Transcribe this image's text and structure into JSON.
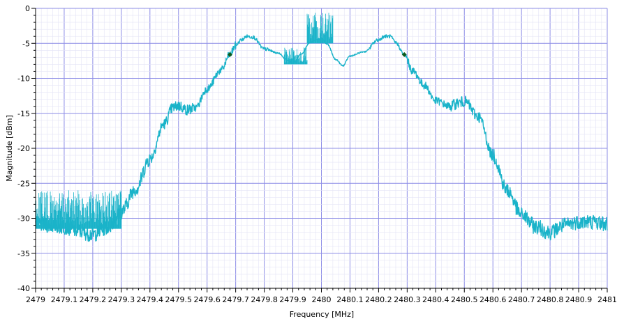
{
  "chart_data": {
    "type": "line",
    "title": "",
    "xlabel": "Frequency [MHz]",
    "ylabel": "Magnitude [dBm]",
    "xlim": [
      2479,
      2481
    ],
    "ylim": [
      -40,
      0
    ],
    "grid": true,
    "x_ticks": [
      2479,
      2479.1,
      2479.2,
      2479.3,
      2479.4,
      2479.5,
      2479.6,
      2479.7,
      2479.8,
      2479.9,
      2480,
      2480.1,
      2480.2,
      2480.3,
      2480.4,
      2480.5,
      2480.6,
      2480.7,
      2480.8,
      2480.9,
      2481
    ],
    "x_tick_labels": [
      "2479",
      "2479.1",
      "2479.2",
      "2479.3",
      "2479.4",
      "2479.5",
      "2479.6",
      "2479.7",
      "2479.8",
      "2479.9",
      "2480",
      "2480.1",
      "2480.2",
      "2480.3",
      "2480.4",
      "2480.5",
      "2480.6",
      "2480.7",
      "2480.8",
      "2480.9",
      "2481"
    ],
    "y_ticks": [
      0,
      -5,
      -10,
      -15,
      -20,
      -25,
      -30,
      -35,
      -40
    ],
    "y_tick_labels": [
      "0",
      "-5",
      "-10",
      "-15",
      "-20",
      "-25",
      "-30",
      "-35",
      "-40"
    ],
    "series": [
      {
        "color": "#1ab3c9",
        "x": [
          2479.0,
          2479.05,
          2479.1,
          2479.15,
          2479.2,
          2479.25,
          2479.3,
          2479.35,
          2479.4,
          2479.45,
          2479.48,
          2479.5,
          2479.53,
          2479.56,
          2479.6,
          2479.65,
          2479.68,
          2479.7,
          2479.72,
          2479.74,
          2479.76,
          2479.8,
          2479.85,
          2479.88,
          2479.9,
          2479.93,
          2479.96,
          2479.98,
          2480.0,
          2480.02,
          2480.05,
          2480.075,
          2480.1,
          2480.15,
          2480.2,
          2480.22,
          2480.24,
          2480.26,
          2480.29,
          2480.32,
          2480.36,
          2480.4,
          2480.45,
          2480.48,
          2480.5,
          2480.55,
          2480.6,
          2480.65,
          2480.7,
          2480.75,
          2480.8,
          2480.85,
          2480.9,
          2480.95,
          2481.0
        ],
        "y": [
          -30.8,
          -31.0,
          -31.2,
          -31.8,
          -32.3,
          -31.3,
          -29.0,
          -25.8,
          -21.5,
          -16.5,
          -14.2,
          -13.9,
          -14.5,
          -14.2,
          -11.5,
          -8.8,
          -6.6,
          -5.3,
          -4.5,
          -4.0,
          -4.1,
          -5.8,
          -6.4,
          -7.4,
          -7.8,
          -6.5,
          -4.9,
          -4.5,
          -4.3,
          -5.1,
          -7.3,
          -8.2,
          -6.8,
          -6.2,
          -4.5,
          -4.0,
          -4.0,
          -4.9,
          -6.6,
          -9.0,
          -11.0,
          -13.2,
          -14.0,
          -13.5,
          -13.3,
          -15.5,
          -21.0,
          -26.0,
          -29.5,
          -31.2,
          -32.0,
          -31.0,
          -30.5,
          -30.5,
          -30.8
        ]
      }
    ],
    "spur_regions": [
      {
        "x_from": 2479.0,
        "x_to": 2479.3,
        "top": -26.0,
        "bottom": -31.5
      },
      {
        "x_from": 2479.87,
        "x_to": 2479.95,
        "top": -5.5,
        "bottom": -8.0
      },
      {
        "x_from": 2479.95,
        "x_to": 2480.04,
        "top": -0.6,
        "bottom": -5.0
      }
    ],
    "markers": [
      {
        "x": 2479.68,
        "y": -6.6,
        "color": "#0b5a1e"
      },
      {
        "x": 2480.29,
        "y": -6.6,
        "color": "#0b5a1e"
      }
    ]
  }
}
